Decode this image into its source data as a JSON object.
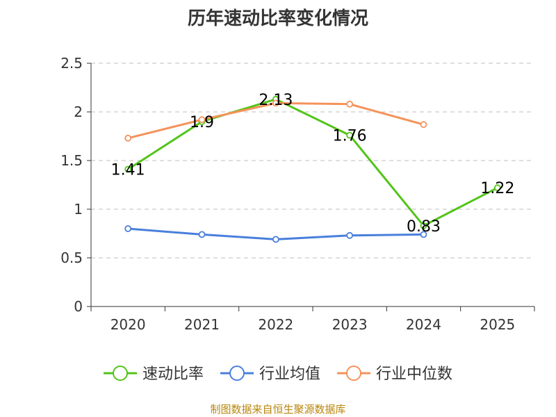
{
  "chart_data": {
    "type": "line",
    "title": "历年速动比率变化情况",
    "categories": [
      "2020",
      "2021",
      "2022",
      "2023",
      "2024",
      "2025"
    ],
    "ylim": [
      0,
      2.5
    ],
    "yticks": [
      "0",
      "0.5",
      "1",
      "1.5",
      "2",
      "2.5"
    ],
    "grid": true,
    "legend_position": "bottom",
    "series": [
      {
        "name": "速动比率",
        "color": "#52c41a",
        "values": [
          1.41,
          1.9,
          2.13,
          1.76,
          0.83,
          1.22
        ],
        "labels": [
          "1.41",
          "1.9",
          "2.13",
          "1.76",
          "0.83",
          "1.22"
        ]
      },
      {
        "name": "行业均值",
        "color": "#4a7fdc",
        "values": [
          0.8,
          0.74,
          0.69,
          0.73,
          0.74,
          null
        ]
      },
      {
        "name": "行业中位数",
        "color": "#f5925a",
        "values": [
          1.73,
          1.92,
          2.09,
          2.08,
          1.87,
          null
        ]
      }
    ],
    "source": "制图数据来自恒生聚源数据库"
  }
}
